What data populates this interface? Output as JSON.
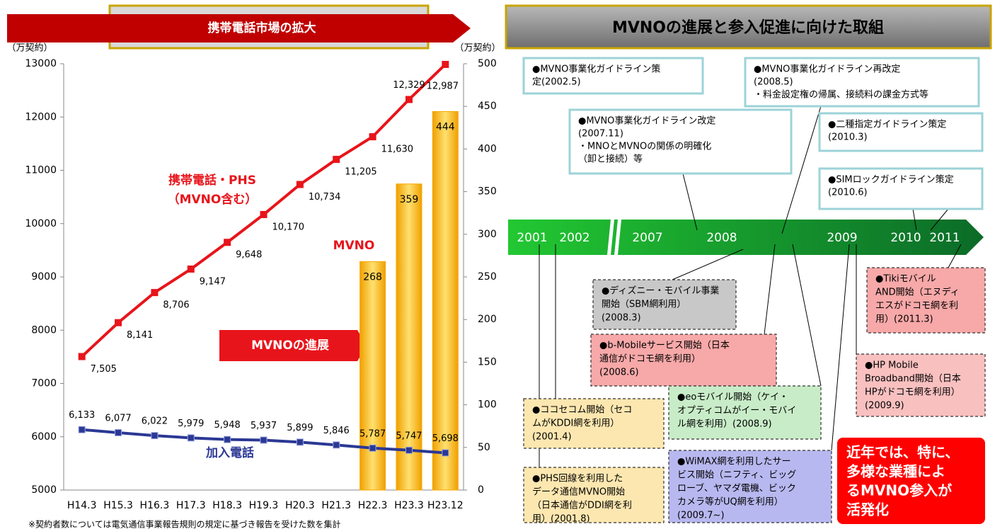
{
  "chart_data": {
    "type": "combo",
    "title": "携帯電話市場の拡大",
    "ylabel": "（万契約）",
    "y2label": "（万契約）",
    "categories": [
      "H14.3",
      "H15.3",
      "H16.3",
      "H17.3",
      "H18.3",
      "H19.3",
      "H20.3",
      "H21.3",
      "H22.3",
      "H23.3",
      "H23.12"
    ],
    "ylim": [
      5000,
      13000
    ],
    "yticks": [
      5000,
      6000,
      7000,
      8000,
      9000,
      10000,
      11000,
      12000,
      13000
    ],
    "y2lim": [
      0,
      500
    ],
    "y2ticks": [
      0,
      50,
      100,
      150,
      200,
      250,
      300,
      350,
      400,
      450,
      500
    ],
    "series": [
      {
        "name": "携帯電話・PHS",
        "type": "line",
        "color": "#e8141b",
        "values": [
          7505,
          8141,
          8706,
          9147,
          9648,
          10170,
          10734,
          11205,
          11630,
          12329,
          12987
        ],
        "value_labels": [
          "7,505",
          "8,141",
          "8,706",
          "9,147",
          "9,648",
          "10,170",
          "10,734",
          "11,205",
          "11,630",
          "12,329",
          "12,987"
        ]
      },
      {
        "name": "加入電話",
        "type": "line",
        "color": "#2b3894",
        "values": [
          6133,
          6077,
          6022,
          5979,
          5948,
          5937,
          5899,
          5846,
          5787,
          5747,
          5698
        ],
        "value_labels": [
          "6,133",
          "6,077",
          "6,022",
          "5,979",
          "5,948",
          "5,937",
          "5,899",
          "5,846",
          "5,787",
          "5,747",
          "5,698"
        ]
      },
      {
        "name": "MVNO",
        "type": "bar",
        "axis": "y2",
        "color": "#f5a800",
        "values": [
          null,
          null,
          null,
          null,
          null,
          null,
          null,
          null,
          268,
          359,
          444
        ]
      }
    ],
    "annotations": [
      "（MVNO含む）",
      "MVNOの進展"
    ],
    "footnote": "※契約者数については電気通信事業報告規則の規定に基づき報告を受けた数を集計"
  },
  "timeline": {
    "title": "MVNOの進展と参入促進に向けた取組",
    "years": [
      "2001",
      "2002",
      "2007",
      "2008",
      "2009",
      "2010",
      "2011"
    ],
    "above": [
      {
        "lines": [
          "●MVNO事業化ガイドライン策",
          "定(2002.5)"
        ]
      },
      {
        "lines": [
          "●MVNO事業化ガイドライン再改定",
          "(2008.5)",
          "・料金設定権の帰属、接続料の課金方式等"
        ]
      },
      {
        "lines": [
          "●MVNO事業化ガイドライン改定",
          "(2007.11)",
          "・MNOとMVNOの関係の明確化",
          "（卸と接続）等"
        ]
      },
      {
        "lines": [
          "●二種指定ガイドライン策定",
          "(2010.3)"
        ]
      },
      {
        "lines": [
          "●SIMロックガイドライン策定",
          "(2010.6)"
        ]
      }
    ],
    "below": [
      {
        "lines": [
          "●ディズニー・モバイル事業",
          "開始（SBM網利用）",
          "(2008.3)"
        ]
      },
      {
        "lines": [
          "●b-Mobileサービス開始（日本",
          "通信がドコモ網を利用）",
          "(2008.6)"
        ]
      },
      {
        "lines": [
          "●eoモバイル開始（ケイ・",
          "オプティコムがイー・モバイ",
          "ル網を利用）(2008.9)"
        ]
      },
      {
        "lines": [
          "●WiMAX網を利用したサー",
          "ビス開始（ニフティ、ビッグ",
          "ローブ、ヤマダ電機、ビック",
          "カメラ等がUQ網を利用）",
          "(2009.7~)"
        ]
      },
      {
        "lines": [
          "●ココセコム開始（セコ",
          "ムがKDDI網を利用）",
          "(2001.4)"
        ]
      },
      {
        "lines": [
          "●PHS回線を利用した",
          "データ通信MVNO開始",
          "（日本通信がDDI網を利",
          "用）(2001.8)"
        ]
      },
      {
        "lines": [
          "●Tikiモバイル",
          "AND開始（エヌディ",
          "エスがドコモ網を利",
          "用）(2011.3)"
        ]
      },
      {
        "lines": [
          "●HP Mobile",
          "Broadband開始（日本",
          "HPがドコモ網を利用）",
          "(2009.9)"
        ]
      }
    ],
    "callout": [
      "近年では、特に、",
      "多様な業種によ",
      "るMVNO参入が",
      "活発化"
    ]
  }
}
